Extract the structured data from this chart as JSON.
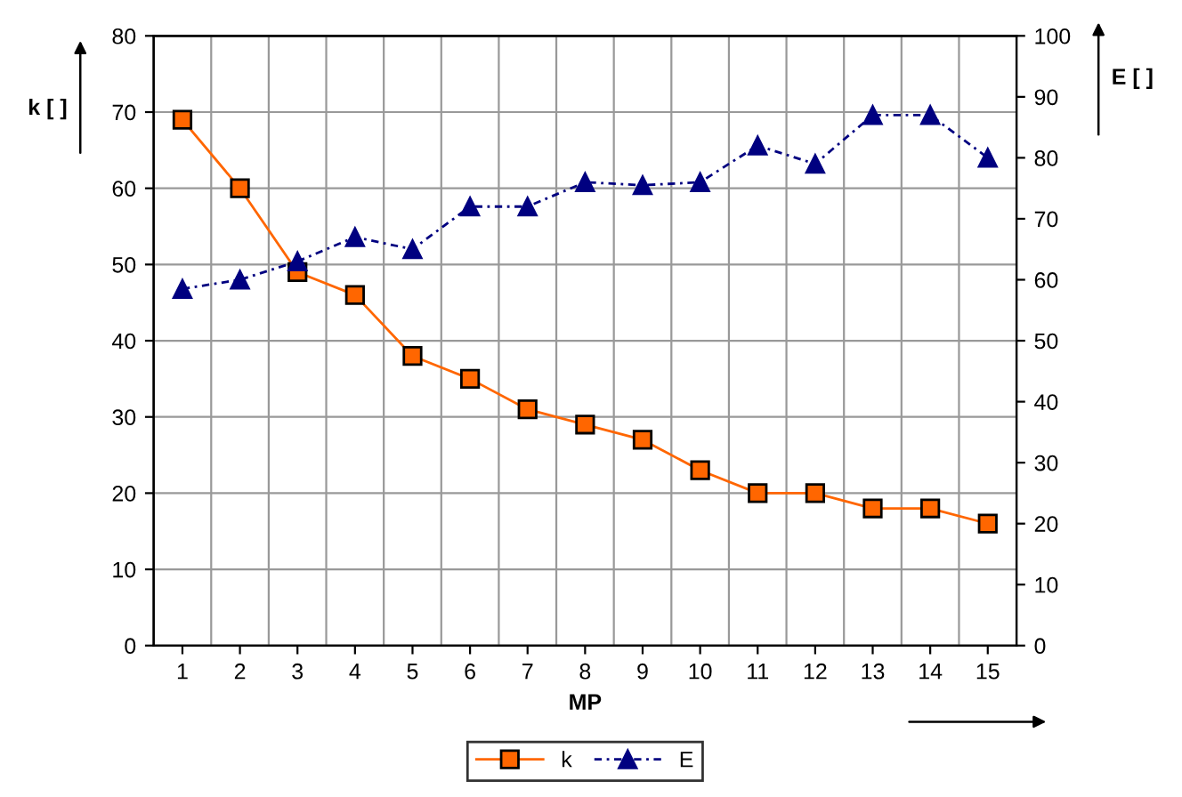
{
  "chart_data": {
    "type": "line",
    "xlabel": "MP",
    "ylabel": "k [ ]",
    "y2label": "E [ ]",
    "categories": [
      "1",
      "2",
      "3",
      "4",
      "5",
      "6",
      "7",
      "8",
      "9",
      "10",
      "11",
      "12",
      "13",
      "14",
      "15"
    ],
    "series": [
      {
        "name": "k",
        "color": "#ff6600",
        "marker": "square",
        "line_style": "solid",
        "values": [
          69,
          60,
          49,
          46,
          38,
          35,
          31,
          29,
          27,
          23,
          20,
          20,
          18,
          18,
          16
        ]
      },
      {
        "name": "E",
        "color": "#000080",
        "marker": "triangle",
        "line_style": "dashed",
        "axis": "y2",
        "values": [
          58.5,
          60,
          63,
          67,
          65,
          72,
          72,
          76,
          75.5,
          76,
          82,
          79,
          87,
          87,
          80
        ]
      }
    ],
    "ylim": [
      0,
      80
    ],
    "yticks": [
      0,
      10,
      20,
      30,
      40,
      50,
      60,
      70,
      80
    ],
    "y2lim": [
      0,
      100
    ],
    "y2ticks": [
      0,
      10,
      20,
      30,
      40,
      50,
      60,
      70,
      80,
      90,
      100
    ],
    "grid": true,
    "legend": "bottom"
  }
}
